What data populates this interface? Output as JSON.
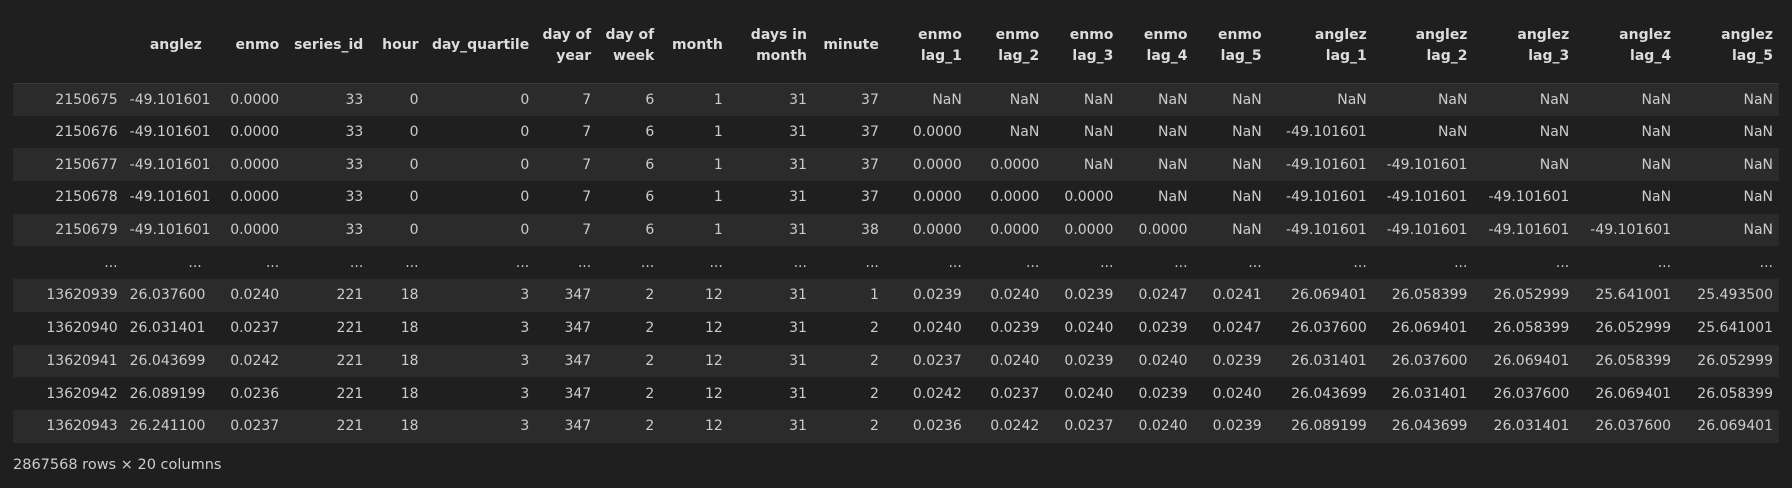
{
  "table": {
    "index_header": "",
    "columns": [
      "anglez",
      "enmo",
      "series_id",
      "hour",
      "day_quartile",
      "day of year",
      "day of week",
      "month",
      "days in month",
      "minute",
      "enmo lag_1",
      "enmo lag_2",
      "enmo lag_3",
      "enmo lag_4",
      "enmo lag_5",
      "anglez lag_1",
      "anglez lag_2",
      "anglez lag_3",
      "anglez lag_4",
      "anglez lag_5"
    ],
    "rows": [
      {
        "index": "2150675",
        "cells": [
          "-49.101601",
          "0.0000",
          "33",
          "0",
          "0",
          "7",
          "6",
          "1",
          "31",
          "37",
          "NaN",
          "NaN",
          "NaN",
          "NaN",
          "NaN",
          "NaN",
          "NaN",
          "NaN",
          "NaN",
          "NaN"
        ]
      },
      {
        "index": "2150676",
        "cells": [
          "-49.101601",
          "0.0000",
          "33",
          "0",
          "0",
          "7",
          "6",
          "1",
          "31",
          "37",
          "0.0000",
          "NaN",
          "NaN",
          "NaN",
          "NaN",
          "-49.101601",
          "NaN",
          "NaN",
          "NaN",
          "NaN"
        ]
      },
      {
        "index": "2150677",
        "cells": [
          "-49.101601",
          "0.0000",
          "33",
          "0",
          "0",
          "7",
          "6",
          "1",
          "31",
          "37",
          "0.0000",
          "0.0000",
          "NaN",
          "NaN",
          "NaN",
          "-49.101601",
          "-49.101601",
          "NaN",
          "NaN",
          "NaN"
        ]
      },
      {
        "index": "2150678",
        "cells": [
          "-49.101601",
          "0.0000",
          "33",
          "0",
          "0",
          "7",
          "6",
          "1",
          "31",
          "37",
          "0.0000",
          "0.0000",
          "0.0000",
          "NaN",
          "NaN",
          "-49.101601",
          "-49.101601",
          "-49.101601",
          "NaN",
          "NaN"
        ]
      },
      {
        "index": "2150679",
        "cells": [
          "-49.101601",
          "0.0000",
          "33",
          "0",
          "0",
          "7",
          "6",
          "1",
          "31",
          "38",
          "0.0000",
          "0.0000",
          "0.0000",
          "0.0000",
          "NaN",
          "-49.101601",
          "-49.101601",
          "-49.101601",
          "-49.101601",
          "NaN"
        ]
      },
      {
        "index": "...",
        "cells": [
          "...",
          "...",
          "...",
          "...",
          "...",
          "...",
          "...",
          "...",
          "...",
          "...",
          "...",
          "...",
          "...",
          "...",
          "...",
          "...",
          "...",
          "...",
          "...",
          "..."
        ]
      },
      {
        "index": "13620939",
        "cells": [
          "26.037600",
          "0.0240",
          "221",
          "18",
          "3",
          "347",
          "2",
          "12",
          "31",
          "1",
          "0.0239",
          "0.0240",
          "0.0239",
          "0.0247",
          "0.0241",
          "26.069401",
          "26.058399",
          "26.052999",
          "25.641001",
          "25.493500"
        ]
      },
      {
        "index": "13620940",
        "cells": [
          "26.031401",
          "0.0237",
          "221",
          "18",
          "3",
          "347",
          "2",
          "12",
          "31",
          "2",
          "0.0240",
          "0.0239",
          "0.0240",
          "0.0239",
          "0.0247",
          "26.037600",
          "26.069401",
          "26.058399",
          "26.052999",
          "25.641001"
        ]
      },
      {
        "index": "13620941",
        "cells": [
          "26.043699",
          "0.0242",
          "221",
          "18",
          "3",
          "347",
          "2",
          "12",
          "31",
          "2",
          "0.0237",
          "0.0240",
          "0.0239",
          "0.0240",
          "0.0239",
          "26.031401",
          "26.037600",
          "26.069401",
          "26.058399",
          "26.052999"
        ]
      },
      {
        "index": "13620942",
        "cells": [
          "26.089199",
          "0.0236",
          "221",
          "18",
          "3",
          "347",
          "2",
          "12",
          "31",
          "2",
          "0.0242",
          "0.0237",
          "0.0240",
          "0.0239",
          "0.0240",
          "26.043699",
          "26.031401",
          "26.037600",
          "26.069401",
          "26.058399"
        ]
      },
      {
        "index": "13620943",
        "cells": [
          "26.241100",
          "0.0237",
          "221",
          "18",
          "3",
          "347",
          "2",
          "12",
          "31",
          "2",
          "0.0236",
          "0.0242",
          "0.0237",
          "0.0240",
          "0.0239",
          "26.089199",
          "26.043699",
          "26.031401",
          "26.037600",
          "26.069401"
        ]
      }
    ]
  },
  "footer": {
    "shape_text": "2867568 rows × 20 columns"
  },
  "colors": {
    "background": "#1f1f1f",
    "row_stripe": "#2b2b2b",
    "text": "#cccccc"
  }
}
